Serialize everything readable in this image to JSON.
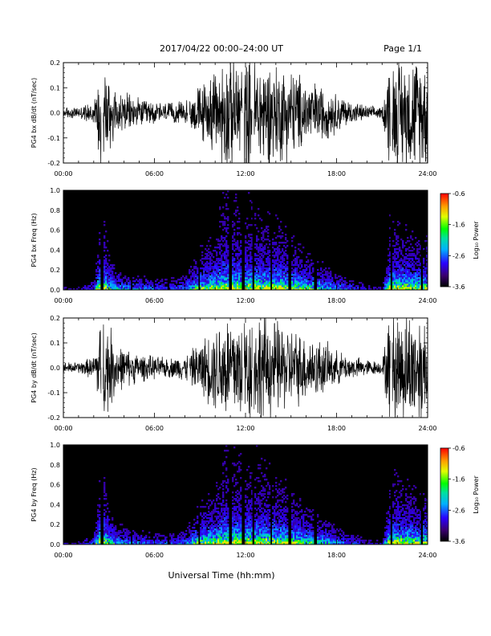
{
  "header": {
    "title": "2017/04/22  00:00–24:00 UT",
    "page": "Page 1/1"
  },
  "footer": {
    "xlabel": "Universal Time (hh:mm)"
  },
  "colorbar": {
    "label": "Log₁₀ Power",
    "ticks": [
      "-0.6",
      "-1.6",
      "-2.6",
      "-3.6"
    ]
  },
  "colors": {
    "background": "#ffffff",
    "spectrogram_bg": "#000000"
  },
  "chart_data": [
    {
      "type": "line",
      "ylabel": "PG4 bx dB/dt (nT/sec)",
      "x_ticks": [
        "00:00",
        "06:00",
        "12:00",
        "18:00",
        "24:00"
      ],
      "y_ticks": [
        "0.2",
        "0.1",
        "0.0",
        "-0.1",
        "-0.2"
      ],
      "xlim": [
        0,
        24
      ],
      "ylim": [
        -0.2,
        0.2
      ],
      "amplitude_envelope": {
        "hour": [
          0,
          1,
          2,
          2.5,
          3,
          3.5,
          4,
          5,
          6,
          7,
          8,
          9,
          10,
          10.5,
          11,
          12,
          13,
          14,
          15,
          16,
          17,
          18,
          19,
          20,
          21,
          21.5,
          22,
          23,
          24
        ],
        "amp": [
          0.02,
          0.02,
          0.04,
          0.2,
          0.15,
          0.08,
          0.07,
          0.05,
          0.04,
          0.035,
          0.04,
          0.1,
          0.14,
          0.2,
          0.2,
          0.2,
          0.2,
          0.18,
          0.16,
          0.12,
          0.1,
          0.07,
          0.04,
          0.025,
          0.02,
          0.2,
          0.2,
          0.2,
          0.2
        ]
      },
      "data_gaps_hours": [
        2.55,
        8.25,
        11.85,
        12.5,
        21.6
      ]
    },
    {
      "type": "heatmap",
      "ylabel": "PG4 bx Freq (Hz)",
      "x_ticks": [
        "00:00",
        "06:00",
        "12:00",
        "18:00",
        "24:00"
      ],
      "y_ticks": [
        "1.0",
        "0.8",
        "0.6",
        "0.4",
        "0.2",
        "0.0"
      ],
      "xlim": [
        0,
        24
      ],
      "ylim": [
        0,
        1.0
      ],
      "zlabel": "Log₁₀ Power",
      "zlim": [
        -3.6,
        -0.6
      ],
      "activity_by_hour": {
        "hour": [
          0,
          1,
          2,
          2.5,
          3,
          3.5,
          4,
          5,
          6,
          7,
          8,
          9,
          10,
          10.5,
          11,
          12,
          13,
          14,
          15,
          16,
          17,
          18,
          19,
          20,
          21,
          21.5,
          22,
          23,
          24
        ],
        "level": [
          0.15,
          0.15,
          0.3,
          1.0,
          0.65,
          0.45,
          0.4,
          0.35,
          0.3,
          0.3,
          0.35,
          0.7,
          0.8,
          0.95,
          0.95,
          0.9,
          0.9,
          0.85,
          0.8,
          0.65,
          0.55,
          0.4,
          0.3,
          0.2,
          0.15,
          0.85,
          0.85,
          0.8,
          0.75
        ]
      },
      "data_gaps_hours": [
        2.55,
        4.5,
        6.9,
        8.95,
        11.0,
        11.85,
        12.5,
        13.7,
        14.9,
        16.6,
        21.6,
        23.6
      ]
    },
    {
      "type": "line",
      "ylabel": "PG4 by dB/dt (nT/sec)",
      "x_ticks": [
        "00:00",
        "06:00",
        "12:00",
        "18:00",
        "24:00"
      ],
      "y_ticks": [
        "0.2",
        "0.1",
        "0.0",
        "-0.1",
        "-0.2"
      ],
      "xlim": [
        0,
        24
      ],
      "ylim": [
        -0.2,
        0.2
      ],
      "amplitude_envelope": {
        "hour": [
          0,
          1,
          2,
          2.5,
          3,
          3.5,
          4,
          5,
          6,
          7,
          8,
          9,
          10,
          10.5,
          11,
          12,
          13,
          14,
          15,
          16,
          17,
          18,
          19,
          20,
          21,
          21.5,
          22,
          23,
          24
        ],
        "amp": [
          0.02,
          0.02,
          0.04,
          0.2,
          0.16,
          0.09,
          0.07,
          0.05,
          0.04,
          0.035,
          0.045,
          0.09,
          0.15,
          0.2,
          0.2,
          0.2,
          0.2,
          0.17,
          0.14,
          0.12,
          0.1,
          0.06,
          0.04,
          0.03,
          0.02,
          0.2,
          0.2,
          0.2,
          0.2
        ]
      },
      "data_gaps_hours": [
        2.55,
        8.25,
        11.85,
        12.5,
        21.6
      ]
    },
    {
      "type": "heatmap",
      "ylabel": "PG4 by Freq (Hz)",
      "x_ticks": [
        "00:00",
        "06:00",
        "12:00",
        "18:00",
        "24:00"
      ],
      "y_ticks": [
        "1.0",
        "0.8",
        "0.6",
        "0.4",
        "0.2",
        "0.0"
      ],
      "xlim": [
        0,
        24
      ],
      "ylim": [
        0,
        1.0
      ],
      "zlabel": "Log₁₀ Power",
      "zlim": [
        -3.6,
        -0.6
      ],
      "activity_by_hour": {
        "hour": [
          0,
          1,
          2,
          2.5,
          3,
          3.5,
          4,
          5,
          6,
          7,
          8,
          9,
          10,
          10.5,
          11,
          12,
          13,
          14,
          15,
          16,
          17,
          18,
          19,
          20,
          21,
          21.5,
          22,
          23,
          24
        ],
        "level": [
          0.15,
          0.15,
          0.3,
          1.0,
          0.65,
          0.45,
          0.4,
          0.35,
          0.3,
          0.3,
          0.35,
          0.7,
          0.8,
          0.95,
          0.95,
          0.9,
          0.9,
          0.85,
          0.8,
          0.65,
          0.55,
          0.4,
          0.3,
          0.2,
          0.15,
          0.85,
          0.85,
          0.8,
          0.75
        ]
      },
      "data_gaps_hours": [
        2.55,
        4.5,
        6.9,
        8.95,
        11.0,
        11.85,
        12.5,
        13.7,
        14.9,
        16.6,
        21.6,
        23.6
      ]
    }
  ]
}
